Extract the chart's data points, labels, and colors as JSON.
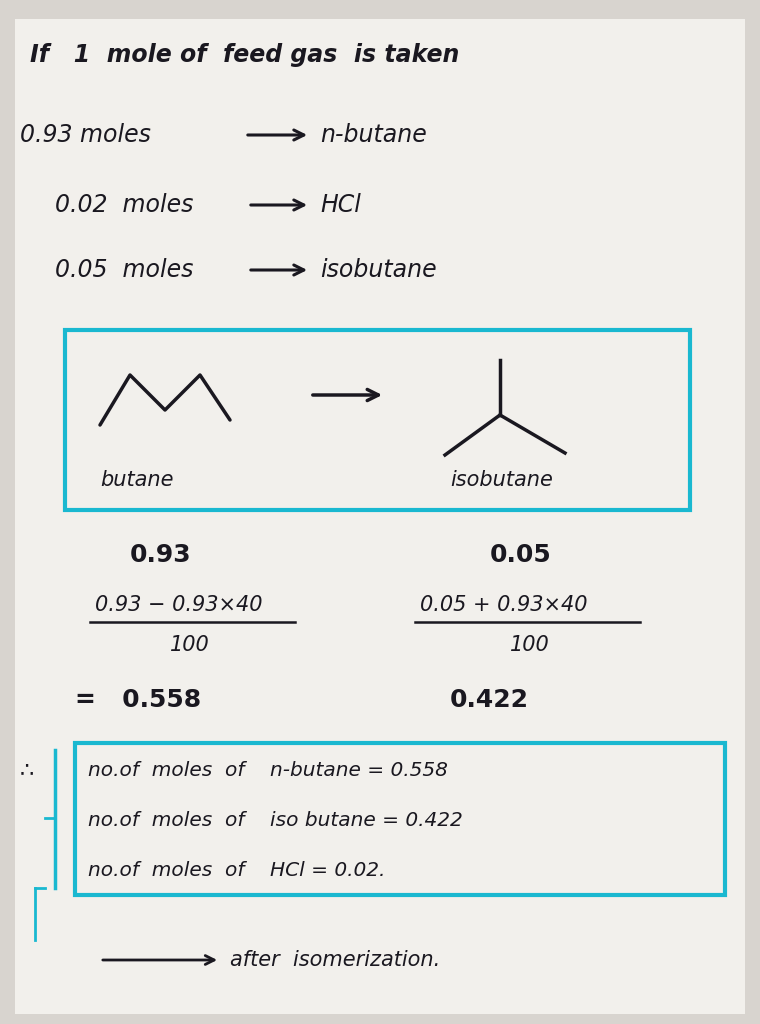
{
  "bg_color": "#d8d4cf",
  "paper_color": "#f2f0ec",
  "ink_color": "#1a1820",
  "cyan_color": "#1ab8d0",
  "title_line": "If   1  mole of  feed gas  is taken",
  "butane_label": "butane",
  "isobutane_label": "isobutane",
  "val_butane": "0.93",
  "val_isobutane": "0.05",
  "result1": "no.of  moles  of    n-butane = 0.558",
  "result2": "no.of  moles  of    iso butane = 0.422",
  "result3": "no.of  moles  of    HCl = 0.02.",
  "footer": "after  isomerization."
}
